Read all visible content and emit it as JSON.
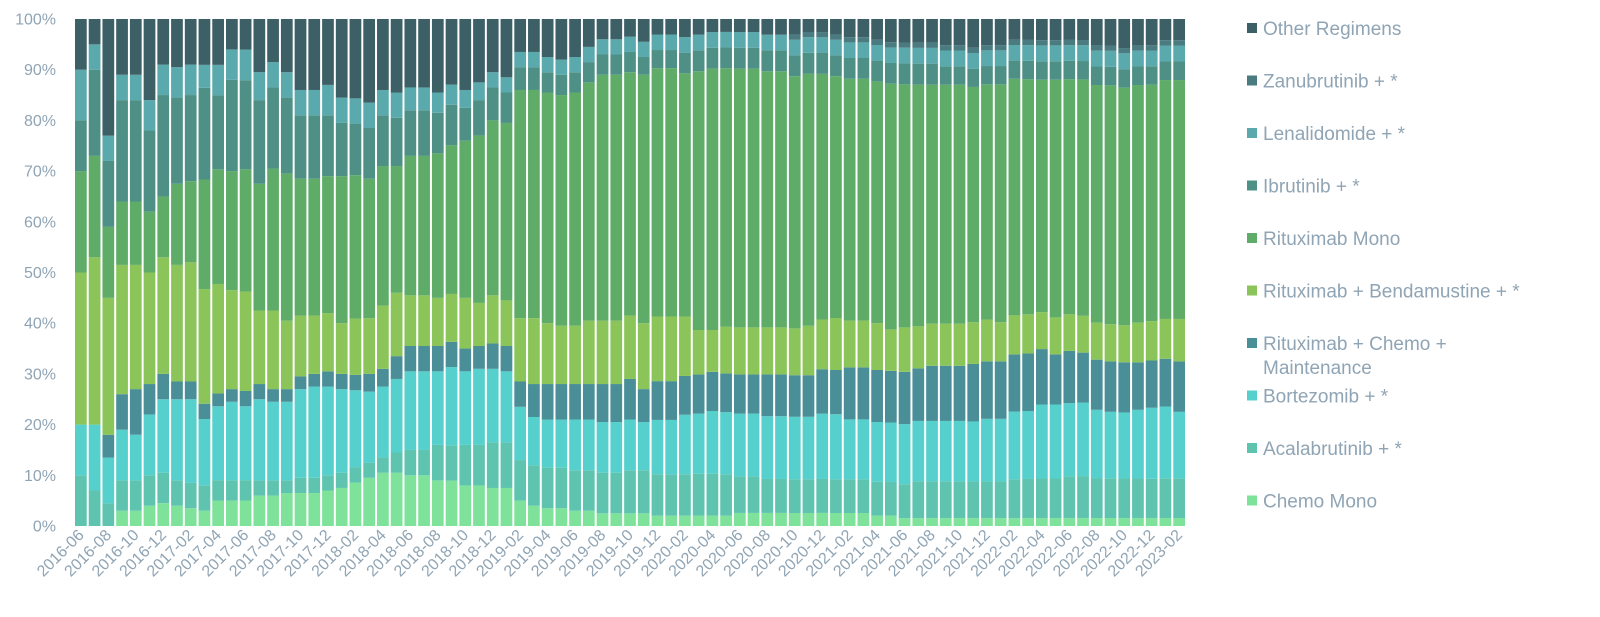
{
  "chart_data": {
    "type": "bar",
    "stacked": true,
    "normalized": true,
    "title": "",
    "xlabel": "",
    "ylabel": "",
    "ylim": [
      0,
      100
    ],
    "yticks": [
      "0%",
      "10%",
      "20%",
      "30%",
      "40%",
      "50%",
      "60%",
      "70%",
      "80%",
      "90%",
      "100%"
    ],
    "legend_position": "right",
    "x_tick_labels": [
      "2016-06",
      "2016-08",
      "2016-10",
      "2016-12",
      "2017-02",
      "2017-04",
      "2017-06",
      "2017-08",
      "2017-10",
      "2017-12",
      "2018-02",
      "2018-04",
      "2018-06",
      "2018-08",
      "2018-10",
      "2018-12",
      "2019-02",
      "2019-04",
      "2019-06",
      "2019-08",
      "2019-10",
      "2019-12",
      "2020-02",
      "2020-04",
      "2020-06",
      "2020-08",
      "2020-10",
      "2020-12",
      "2021-02",
      "2021-04",
      "2021-06",
      "2021-08",
      "2021-10",
      "2021-12",
      "2022-02",
      "2022-04",
      "2022-06",
      "2022-08",
      "2022-10",
      "2022-12",
      "2023-02"
    ],
    "categories": [
      "2016-06",
      "2016-07",
      "2016-08",
      "2016-09",
      "2016-10",
      "2016-11",
      "2016-12",
      "2017-01",
      "2017-02",
      "2017-03",
      "2017-04",
      "2017-05",
      "2017-06",
      "2017-07",
      "2017-08",
      "2017-09",
      "2017-10",
      "2017-11",
      "2017-12",
      "2018-01",
      "2018-02",
      "2018-03",
      "2018-04",
      "2018-05",
      "2018-06",
      "2018-07",
      "2018-08",
      "2018-09",
      "2018-10",
      "2018-11",
      "2018-12",
      "2019-01",
      "2019-02",
      "2019-03",
      "2019-04",
      "2019-05",
      "2019-06",
      "2019-07",
      "2019-08",
      "2019-09",
      "2019-10",
      "2019-11",
      "2019-12",
      "2020-01",
      "2020-02",
      "2020-03",
      "2020-04",
      "2020-05",
      "2020-06",
      "2020-07",
      "2020-08",
      "2020-09",
      "2020-10",
      "2020-11",
      "2020-12",
      "2021-01",
      "2021-02",
      "2021-03",
      "2021-04",
      "2021-05",
      "2021-06",
      "2021-07",
      "2021-08",
      "2021-09",
      "2021-10",
      "2021-11",
      "2021-12",
      "2022-01",
      "2022-02",
      "2022-03",
      "2022-04",
      "2022-05",
      "2022-06",
      "2022-07",
      "2022-08",
      "2022-09",
      "2022-10",
      "2022-11",
      "2022-12",
      "2023-01",
      "2023-02"
    ],
    "series": [
      {
        "name": "Chemo Mono",
        "color": "#7ee29a",
        "values": [
          0,
          0,
          0,
          3,
          3,
          4,
          4.5,
          4,
          3.5,
          3,
          5,
          5,
          5,
          6,
          6,
          6.5,
          6.5,
          6.5,
          7,
          7.5,
          8.5,
          9.5,
          10.5,
          10.5,
          10,
          10,
          9,
          9,
          8,
          8,
          7.5,
          7.5,
          5,
          4,
          3.5,
          3.5,
          3,
          3,
          2.5,
          2.5,
          2.5,
          2.5,
          2,
          2,
          2,
          2,
          2,
          2,
          2.5,
          2.5,
          2.5,
          2.5,
          2.5,
          2.5,
          2.5,
          2.5,
          2.5,
          2.5,
          2,
          2,
          1.5,
          1.5,
          1.5,
          1.5,
          1.5,
          1.5,
          1.5,
          1.5,
          1.5,
          1.5,
          1.5,
          1.5,
          1.5,
          1.5,
          1.5,
          1.5,
          1.5,
          1.5,
          1.5,
          1.5,
          1.5
        ]
      },
      {
        "name": "Acalabrutinib + *",
        "color": "#5ec4b0",
        "values": [
          10,
          7,
          4.5,
          6,
          6,
          6,
          6,
          5,
          5,
          5,
          4,
          4,
          4,
          3,
          3,
          2.5,
          3,
          3,
          3,
          3,
          3,
          3,
          3,
          4,
          5,
          5,
          7,
          7,
          8,
          8,
          9,
          9,
          8,
          8,
          8,
          8,
          8,
          8,
          8,
          8,
          8.5,
          8.5,
          8,
          8,
          8,
          8,
          8,
          8,
          7,
          7,
          6.5,
          6.5,
          6.5,
          6.5,
          6.5,
          6.5,
          6.5,
          6.5,
          6.5,
          6.5,
          6.5,
          7,
          7,
          7,
          7,
          7,
          7,
          7,
          7.5,
          7.5,
          7.5,
          7.5,
          8,
          8,
          7.5,
          7.5,
          7.5,
          7.5,
          7.5,
          7.5,
          7.5
        ]
      },
      {
        "name": "Bortezomib + *",
        "color": "#56d0cc",
        "values": [
          10,
          13,
          9,
          10,
          9,
          12,
          14.5,
          16,
          16.5,
          13,
          14.5,
          15.5,
          14.5,
          16,
          15.5,
          15.5,
          17.5,
          18,
          17.5,
          16.5,
          15,
          14,
          14,
          14.5,
          15.5,
          15.5,
          14.5,
          15.5,
          14.5,
          15,
          14.5,
          14,
          10.5,
          9.5,
          9.5,
          9.5,
          10,
          10,
          10,
          10,
          10,
          9.5,
          10.5,
          10.5,
          11.5,
          11.5,
          12,
          12,
          12,
          12,
          12,
          12,
          12,
          12,
          12.5,
          12.5,
          11.5,
          11.5,
          11.5,
          11.5,
          11.5,
          11.5,
          11.5,
          11.5,
          11.5,
          11.5,
          12,
          12,
          13,
          13,
          14,
          14,
          14,
          14,
          13,
          12.5,
          12.5,
          13,
          13.5,
          13.5,
          12.5
        ]
      },
      {
        "name": "Rituximab + Chemo + Maintenance",
        "color": "#4a8f97",
        "values": [
          0,
          0,
          4.5,
          7,
          9,
          6,
          5,
          3.5,
          3.5,
          3,
          2.5,
          2.5,
          3,
          3,
          2.5,
          2.5,
          2.5,
          2.5,
          3,
          3,
          3,
          3.5,
          3.5,
          4.5,
          5,
          5,
          5,
          5,
          4.5,
          4.5,
          5,
          5,
          5,
          6.5,
          7,
          7,
          7,
          7,
          7.5,
          7.5,
          8,
          6.5,
          7.5,
          7.5,
          7.5,
          7.5,
          7.5,
          7.5,
          7.5,
          7.5,
          8,
          8,
          8,
          8,
          8.5,
          8.5,
          10,
          10,
          10,
          10,
          10,
          10,
          10.5,
          10.5,
          10.5,
          11,
          11,
          11,
          11,
          11,
          10.5,
          9.5,
          10,
          9.5,
          9.5,
          9.5,
          9.5,
          9,
          9,
          9,
          9.5
        ]
      },
      {
        "name": "Rituximab + Bendamustine + *",
        "color": "#8bc55a",
        "values": [
          30,
          33,
          27,
          25.5,
          24.5,
          22,
          23,
          23,
          23.5,
          22.5,
          21.5,
          19.5,
          19.5,
          14.5,
          15.5,
          13.5,
          12,
          11.5,
          11.5,
          10,
          11,
          11,
          12.5,
          12.5,
          10,
          10,
          9.5,
          9.5,
          10,
          8.5,
          9.5,
          9,
          12.5,
          13,
          12,
          11.5,
          11.5,
          12.5,
          12.5,
          12.5,
          12.5,
          13,
          12.5,
          12.5,
          11.5,
          8.5,
          8,
          9,
          9,
          9,
          9,
          9,
          9,
          9.5,
          9.5,
          10,
          9,
          9,
          9,
          8,
          8.5,
          8,
          8,
          8,
          8,
          8,
          8,
          7.5,
          7.5,
          7.5,
          7,
          7,
          7,
          7,
          7,
          7,
          7,
          7.5,
          7.5,
          7.5,
          8
        ]
      },
      {
        "name": "Rituximab Mono",
        "color": "#5eac68",
        "values": [
          20,
          20,
          14,
          12.5,
          12.5,
          12,
          12,
          16,
          16,
          21.5,
          22.5,
          23.5,
          24,
          25,
          28,
          29,
          27,
          27,
          27,
          29,
          28,
          27.5,
          27.5,
          25,
          27.5,
          27.5,
          28.5,
          29.5,
          31,
          33,
          34.5,
          35,
          45,
          45,
          45.5,
          45.5,
          46,
          47,
          48.5,
          48.5,
          48,
          49,
          48,
          48,
          47,
          49.5,
          50,
          50,
          49.5,
          49.5,
          49,
          49,
          48.5,
          48.5,
          47,
          46.5,
          46.5,
          46.5,
          46.5,
          47.5,
          46.5,
          46,
          45.5,
          45.5,
          45.5,
          45,
          45,
          45.5,
          45.5,
          45,
          44,
          45,
          45,
          45,
          45,
          45,
          45,
          45,
          45,
          45,
          45
        ]
      },
      {
        "name": "Ibrutinib + *",
        "color": "#4e9085",
        "values": [
          10,
          17,
          13,
          20,
          20,
          16,
          20,
          17,
          17,
          18,
          14.5,
          18,
          17.5,
          16.5,
          16,
          15,
          12.5,
          12.5,
          12,
          10.5,
          10,
          10,
          10,
          9.5,
          9,
          9,
          8,
          8,
          6.5,
          7,
          6.5,
          6,
          4.5,
          4.5,
          4,
          4,
          4,
          4,
          4,
          4,
          4,
          3.5,
          3.5,
          3.5,
          4,
          4,
          4,
          4,
          4,
          4,
          4,
          4,
          4,
          4,
          4,
          4,
          4,
          4,
          4,
          4,
          4,
          4,
          4,
          3.5,
          3.5,
          3.5,
          3.5,
          3.5,
          3.5,
          3.5,
          3.5,
          3.5,
          3.5,
          3.5,
          3.5,
          3.5,
          3.5,
          3.5,
          3.5,
          3.5,
          3.5
        ]
      },
      {
        "name": "Lenalidomide + *",
        "color": "#5aa9ad",
        "values": [
          10,
          5,
          5,
          5,
          5,
          6,
          6,
          6,
          6,
          4.5,
          6,
          6,
          6,
          5.5,
          5,
          5,
          5,
          5,
          6,
          5,
          5,
          5,
          5,
          5,
          4.5,
          4.5,
          4,
          4,
          3.5,
          3.5,
          3,
          3,
          3,
          3,
          3,
          3,
          3,
          3,
          3,
          3,
          3,
          3,
          3,
          3,
          3,
          3,
          3,
          3,
          3,
          3,
          3,
          3,
          3,
          3,
          3,
          3,
          3,
          3,
          3,
          3,
          3,
          3,
          3,
          3,
          3,
          3,
          3,
          3,
          3,
          3,
          3,
          3,
          3,
          3,
          3,
          3,
          3,
          3,
          3,
          3,
          3
        ]
      },
      {
        "name": "Zanubrutinib + *",
        "color": "#4a7b80",
        "values": [
          0,
          0,
          0,
          0,
          0,
          0,
          0,
          0,
          0,
          0,
          0,
          0,
          0,
          0,
          0,
          0,
          0,
          0,
          0,
          0,
          0,
          0,
          0,
          0,
          0,
          0,
          0,
          0,
          0,
          0,
          0,
          0,
          0,
          0,
          0,
          0,
          0,
          0,
          0,
          0,
          0,
          0,
          0,
          0,
          0,
          0,
          0,
          0,
          0,
          0,
          0,
          0,
          1,
          1,
          1,
          1,
          1,
          1,
          1,
          1,
          1,
          1,
          1,
          1,
          1,
          1,
          1,
          1,
          1,
          1,
          1,
          1,
          1,
          1,
          1,
          1,
          1,
          1,
          1,
          1,
          1
        ]
      },
      {
        "name": "Other Regimens",
        "color": "#3d5f66",
        "values": [
          10,
          5,
          23,
          11,
          11,
          16,
          9,
          9.5,
          9,
          9,
          9,
          6,
          6,
          10.5,
          8.5,
          10.5,
          14,
          14,
          13,
          15.5,
          15.5,
          16.5,
          14,
          14.5,
          13.5,
          13.5,
          14.5,
          13,
          14,
          12.5,
          10.5,
          11.5,
          6.5,
          6.5,
          7.5,
          8,
          7.5,
          5.5,
          4,
          4,
          3.5,
          4.5,
          3,
          3,
          3.5,
          3,
          2.5,
          2.5,
          2.5,
          2.5,
          3,
          3,
          3,
          2.5,
          2.5,
          3,
          3.5,
          3.5,
          4,
          4.5,
          4.5,
          4.5,
          4.5,
          5,
          5,
          5.5,
          5,
          5,
          4,
          4,
          4,
          4,
          4,
          4,
          5,
          5,
          5.5,
          5,
          5,
          4,
          4
        ]
      }
    ]
  }
}
